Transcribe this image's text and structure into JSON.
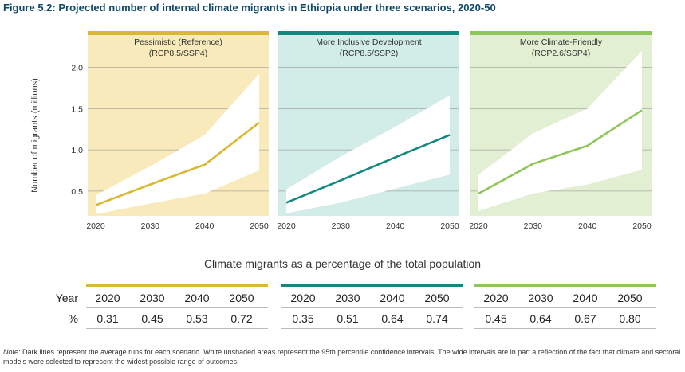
{
  "figure_title": "Figure 5.2: Projected number of internal climate migrants in Ethiopia under three scenarios, 2020-50",
  "y_axis_label": "Number of migrants (millions)",
  "colors": {
    "title": "#0f4a6b",
    "pessimistic_line": "#d9b835",
    "pessimistic_bg": "#f8eaba",
    "inclusive_line": "#13887f",
    "inclusive_bg": "#d2ece8",
    "friendly_line": "#8ec65a",
    "friendly_bg": "#e3efd3"
  },
  "chart_data": [
    {
      "type": "line",
      "title": "Pessimistic (Reference)",
      "subtitle": "(RCP8.5/SSP4)",
      "x": [
        2020,
        2030,
        2040,
        2050
      ],
      "xlim": [
        2020,
        2050
      ],
      "ylim": [
        0.2,
        2.4
      ],
      "y_ticks": [
        "0.5",
        "1.0",
        "1.5",
        "2.0"
      ],
      "x_ticks": [
        "2020",
        "2030",
        "2040",
        "2050"
      ],
      "series": [
        {
          "name": "Average",
          "values": [
            0.33,
            0.58,
            0.82,
            1.33
          ]
        },
        {
          "name": "95th percentile upper",
          "values": [
            0.45,
            0.8,
            1.18,
            1.92
          ]
        },
        {
          "name": "95th percentile lower",
          "values": [
            0.22,
            0.35,
            0.47,
            0.75
          ]
        }
      ]
    },
    {
      "type": "line",
      "title": "More Inclusive Development",
      "subtitle": "(RCP8.5/SSP2)",
      "x": [
        2020,
        2030,
        2040,
        2050
      ],
      "xlim": [
        2020,
        2050
      ],
      "ylim": [
        0.2,
        2.4
      ],
      "y_ticks": [],
      "x_ticks": [
        "2020",
        "2030",
        "2040",
        "2050"
      ],
      "series": [
        {
          "name": "Average",
          "values": [
            0.36,
            0.63,
            0.91,
            1.18
          ]
        },
        {
          "name": "95th percentile upper",
          "values": [
            0.52,
            0.92,
            1.28,
            1.66
          ]
        },
        {
          "name": "95th percentile lower",
          "values": [
            0.23,
            0.36,
            0.53,
            0.7
          ]
        }
      ]
    },
    {
      "type": "line",
      "title": "More Climate-Friendly",
      "subtitle": "(RCP2.6/SSP4)",
      "x": [
        2020,
        2030,
        2040,
        2050
      ],
      "xlim": [
        2020,
        2050
      ],
      "ylim": [
        0.2,
        2.4
      ],
      "y_ticks": [],
      "x_ticks": [
        "2020",
        "2030",
        "2040",
        "2050"
      ],
      "series": [
        {
          "name": "Average",
          "values": [
            0.47,
            0.83,
            1.05,
            1.48
          ]
        },
        {
          "name": "95th percentile upper",
          "values": [
            0.7,
            1.2,
            1.5,
            2.2
          ]
        },
        {
          "name": "95th percentile lower",
          "values": [
            0.26,
            0.47,
            0.58,
            0.76
          ]
        }
      ]
    }
  ],
  "table": {
    "title": "Climate migrants as a percentage of the total population",
    "year_label": "Year",
    "pct_label": "%",
    "groups": [
      {
        "years": [
          "2020",
          "2030",
          "2040",
          "2050"
        ],
        "values": [
          "0.31",
          "0.45",
          "0.53",
          "0.72"
        ]
      },
      {
        "years": [
          "2020",
          "2030",
          "2040",
          "2050"
        ],
        "values": [
          "0.35",
          "0.51",
          "0.64",
          "0.74"
        ]
      },
      {
        "years": [
          "2020",
          "2030",
          "2040",
          "2050"
        ],
        "values": [
          "0.45",
          "0.64",
          "0.67",
          "0.80"
        ]
      }
    ]
  },
  "note": {
    "label": "Note:",
    "text": " Dark lines represent the average runs for each scenario. White unshaded areas represent the 95th percentile confidence intervals. The wide intervals are in part a reflection of the fact that climate and sectoral models were selected to represent the widest possible range of outcomes."
  }
}
